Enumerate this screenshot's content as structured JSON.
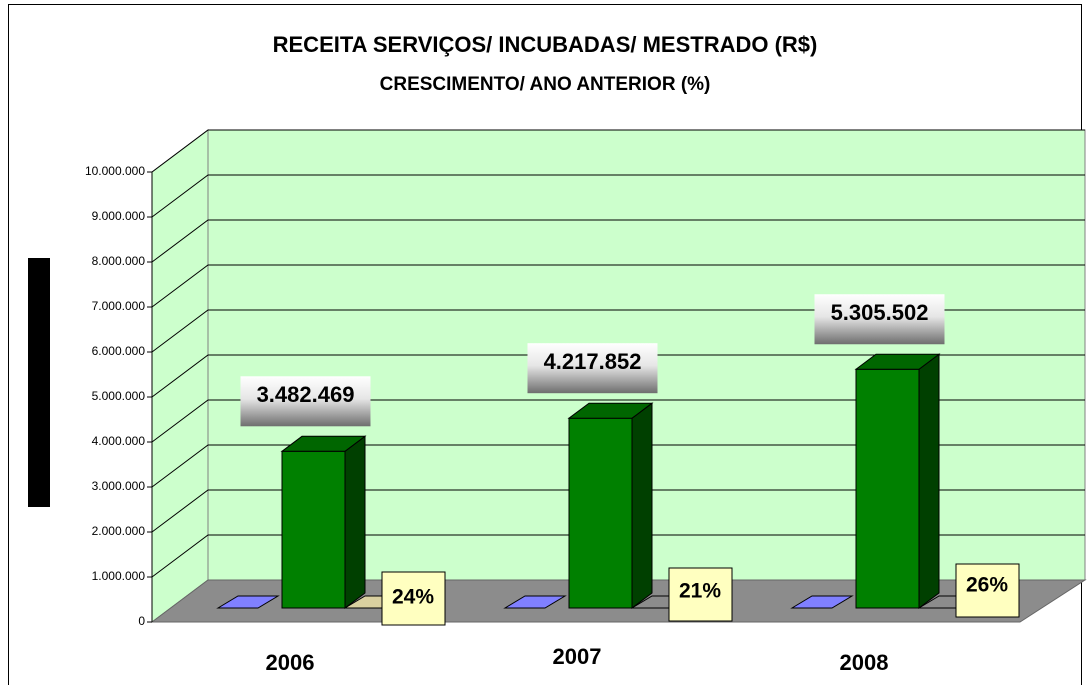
{
  "chart_data": {
    "type": "bar3d",
    "title": "RECEITA SERVIÇOS/ INCUBADAS/ MESTRADO  (R$)",
    "subtitle": "CRESCIMENTO/ ANO ANTERIOR (%)",
    "categories": [
      "2006",
      "2007",
      "2008"
    ],
    "values": [
      3482469,
      4217852,
      5305502
    ],
    "value_labels": [
      "3.482.469",
      "4.217.852",
      "5.305.502"
    ],
    "annotations": [
      "24%",
      "21%",
      "26%"
    ],
    "color": "#008000",
    "ylim": [
      0,
      10000000
    ],
    "yticks": [
      0,
      {
        "value": 1000000,
        "label": "1.000.000"
      },
      {
        "value": 2000000,
        "label": "2.000.000"
      },
      {
        "value": 3000000,
        "label": "3.000.000"
      },
      {
        "value": 4000000,
        "label": "4.000.000"
      },
      {
        "value": 5000000,
        "label": "5.000.000"
      },
      {
        "value": 6000000,
        "label": "6.000.000"
      },
      {
        "value": 7000000,
        "label": "7.000.000"
      },
      {
        "value": 8000000,
        "label": "8.000.000"
      },
      {
        "value": 9000000,
        "label": "9.000.000"
      },
      {
        "value": 10000000,
        "label": "10.000.000"
      }
    ],
    "grid": true
  }
}
